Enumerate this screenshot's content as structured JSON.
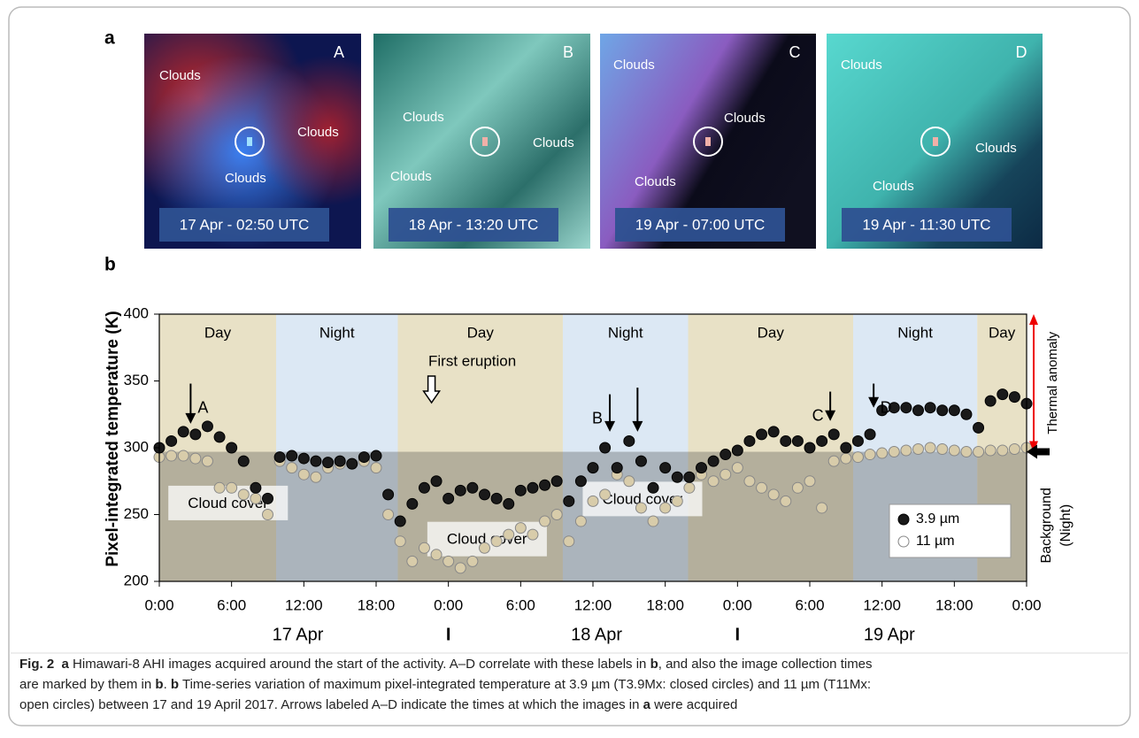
{
  "panel_a": {
    "label": "a",
    "images": [
      {
        "letter": "A",
        "clouds": [
          "Clouds",
          "Clouds",
          "Clouds"
        ],
        "time": "17 Apr - 02:50 UTC"
      },
      {
        "letter": "B",
        "clouds": [
          "Clouds",
          "Clouds",
          "Clouds"
        ],
        "time": "18   Apr - 13:20 UTC"
      },
      {
        "letter": "C",
        "clouds": [
          "Clouds",
          "Clouds",
          "Clouds"
        ],
        "time": "19 Apr - 07:00 UTC"
      },
      {
        "letter": "D",
        "clouds": [
          "Clouds",
          "Clouds",
          "Clouds"
        ],
        "time": "19 Apr - 11:30 UTC"
      }
    ]
  },
  "chart_data": {
    "type": "scatter",
    "panel_label": "b",
    "y_label": "Pixel-integrated temperature (K)",
    "xlim": [
      0,
      72
    ],
    "ylim": [
      200,
      400
    ],
    "yticks": [
      200,
      250,
      300,
      350,
      400
    ],
    "xticks": [
      {
        "value": 0,
        "label": "0:00"
      },
      {
        "value": 6,
        "label": "6:00"
      },
      {
        "value": 12,
        "label": "12:00"
      },
      {
        "value": 18,
        "label": "18:00"
      },
      {
        "value": 24,
        "label": "0:00"
      },
      {
        "value": 30,
        "label": "6:00"
      },
      {
        "value": 36,
        "label": "12:00"
      },
      {
        "value": 42,
        "label": "18:00"
      },
      {
        "value": 48,
        "label": "0:00"
      },
      {
        "value": 54,
        "label": "6:00"
      },
      {
        "value": 60,
        "label": "12:00"
      },
      {
        "value": 66,
        "label": "18:00"
      },
      {
        "value": 72,
        "label": "0:00"
      }
    ],
    "date_labels": [
      {
        "text": "17 Apr",
        "x": 11.5
      },
      {
        "text": "I",
        "x": 24
      },
      {
        "text": "18 Apr",
        "x": 36.3
      },
      {
        "text": "I",
        "x": 48
      },
      {
        "text": "19 Apr",
        "x": 60.6
      }
    ],
    "bands": [
      {
        "label": "Day",
        "start": 0,
        "end": 9.7,
        "color": "#e8e1c6"
      },
      {
        "label": "Night",
        "start": 9.7,
        "end": 19.8,
        "color": "#dce8f4"
      },
      {
        "label": "Day",
        "start": 19.8,
        "end": 33.5,
        "color": "#e8e1c6"
      },
      {
        "label": "Night",
        "start": 33.5,
        "end": 43.9,
        "color": "#dce8f4"
      },
      {
        "label": "Day",
        "start": 43.9,
        "end": 57.6,
        "color": "#e8e1c6"
      },
      {
        "label": "Night",
        "start": 57.6,
        "end": 67.9,
        "color": "#dce8f4"
      },
      {
        "label": "Day",
        "start": 67.9,
        "end": 72,
        "color": "#e8e1c6"
      }
    ],
    "background_level": 297,
    "background_label": [
      "Background",
      "(Night)"
    ],
    "anomaly_label": "Thermal anomaly",
    "cloud_cover": [
      {
        "text": "Cloud cover",
        "x": 5.7,
        "y": 258
      },
      {
        "text": "Cloud cover",
        "x": 27.2,
        "y": 231
      },
      {
        "text": "Cloud cover",
        "x": 40.1,
        "y": 261
      }
    ],
    "arrows": [
      {
        "label": "A",
        "x": 2.6,
        "from": 348,
        "to": 318
      },
      {
        "label": "B",
        "x": 37.4,
        "from": 340,
        "to": 312
      },
      {
        "x": 39.7,
        "from": 345,
        "to": 312
      },
      {
        "label": "C",
        "x": 55.7,
        "from": 342,
        "to": 320
      },
      {
        "label": "D",
        "x": 59.3,
        "from": 348,
        "to": 330
      }
    ],
    "eruption": {
      "text": "First eruption",
      "x": 22.6
    },
    "legend": "lower right",
    "x": [
      0,
      1,
      2,
      3,
      4,
      5,
      6,
      7,
      8,
      9,
      10,
      11,
      12,
      13,
      14,
      15,
      16,
      17,
      18,
      19,
      20,
      21,
      22,
      23,
      24,
      25,
      26,
      27,
      28,
      29,
      30,
      31,
      32,
      33,
      34,
      35,
      36,
      37,
      38,
      39,
      40,
      41,
      42,
      43,
      44,
      45,
      46,
      47,
      48,
      49,
      50,
      51,
      52,
      53,
      54,
      55,
      56,
      57,
      58,
      59,
      60,
      61,
      62,
      63,
      64,
      65,
      66,
      67,
      68,
      69,
      70,
      71,
      72
    ],
    "series": [
      {
        "name": "3.9 µm",
        "color": "#1a1a1a",
        "values": [
          300,
          305,
          312,
          310,
          316,
          308,
          300,
          290,
          270,
          262,
          293,
          294,
          292,
          290,
          289,
          290,
          288,
          293,
          294,
          265,
          245,
          258,
          270,
          275,
          262,
          268,
          270,
          265,
          262,
          258,
          268,
          270,
          272,
          275,
          260,
          275,
          285,
          300,
          285,
          305,
          290,
          270,
          285,
          278,
          278,
          285,
          290,
          295,
          298,
          305,
          310,
          312,
          305,
          305,
          300,
          305,
          310,
          300,
          305,
          310,
          328,
          330,
          330,
          328,
          330,
          328,
          328,
          325,
          315,
          335,
          340,
          338,
          333
        ]
      },
      {
        "name": "11 µm",
        "color": "#d8ccaa",
        "values": [
          293,
          294,
          294,
          292,
          290,
          270,
          270,
          265,
          262,
          250,
          290,
          285,
          280,
          278,
          285,
          288,
          288,
          290,
          285,
          250,
          230,
          215,
          225,
          220,
          215,
          210,
          215,
          225,
          230,
          235,
          240,
          235,
          245,
          250,
          230,
          245,
          260,
          265,
          280,
          275,
          255,
          245,
          255,
          260,
          270,
          280,
          275,
          280,
          285,
          275,
          270,
          265,
          260,
          270,
          275,
          255,
          290,
          292,
          293,
          295,
          296,
          297,
          298,
          299,
          300,
          299,
          298,
          297,
          297,
          298,
          298,
          299,
          300
        ]
      }
    ]
  },
  "caption": {
    "lines": [
      [
        {
          "text": "Fig. 2",
          "bold": true
        },
        {
          "text": "  a",
          "bold": true
        },
        {
          "text": " Himawari-8 AHI images acquired around the start of the activity. A–D correlate with these labels in "
        },
        {
          "text": "b",
          "bold": true
        },
        {
          "text": ", and also the image collection times"
        }
      ],
      [
        {
          "text": "are marked by them in "
        },
        {
          "text": "b",
          "bold": true
        },
        {
          "text": ". "
        },
        {
          "text": "b",
          "bold": true
        },
        {
          "text": " Time-series variation of maximum pixel-integrated temperature at 3.9 µm (T3.9Mx: closed circles) and 11 µm (T11Mx:"
        }
      ],
      [
        {
          "text": "open circles) between 17 and 19 April 2017. Arrows labeled A–D indicate the times at which the images in "
        },
        {
          "text": "a",
          "bold": true
        },
        {
          "text": " were acquired"
        }
      ]
    ]
  }
}
